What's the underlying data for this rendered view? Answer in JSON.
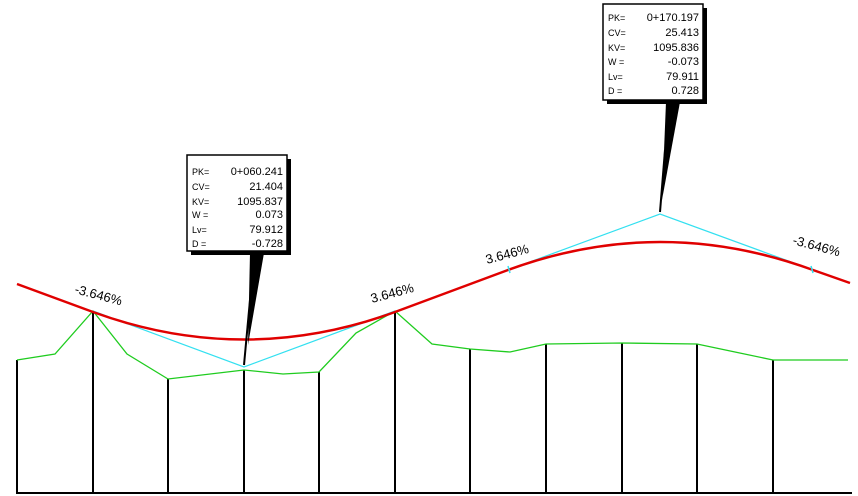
{
  "colors": {
    "profile": "#e00000",
    "tangents": "#33e0f0",
    "terrain": "#1fcc1f",
    "stations": "#000000"
  },
  "grades": [
    {
      "text": "-3.646%"
    },
    {
      "text": "3.646%"
    },
    {
      "text": "3.646%"
    },
    {
      "text": "-3.646%"
    }
  ],
  "callouts": [
    {
      "rows": [
        {
          "key": "PK=",
          "value": "0+060.241"
        },
        {
          "key": "CV=",
          "value": "21.404"
        },
        {
          "key": "KV=",
          "value": "1095.837"
        },
        {
          "key": "W =",
          "value": "0.073"
        },
        {
          "key": "Lv=",
          "value": "79.912"
        },
        {
          "key": "D =",
          "value": "-0.728"
        }
      ]
    },
    {
      "rows": [
        {
          "key": "PK=",
          "value": "0+170.197"
        },
        {
          "key": "CV=",
          "value": "25.413"
        },
        {
          "key": "KV=",
          "value": "1095.836"
        },
        {
          "key": "W =",
          "value": "-0.073"
        },
        {
          "key": "Lv=",
          "value": "79.911"
        },
        {
          "key": "D =",
          "value": "0.728"
        }
      ]
    }
  ]
}
